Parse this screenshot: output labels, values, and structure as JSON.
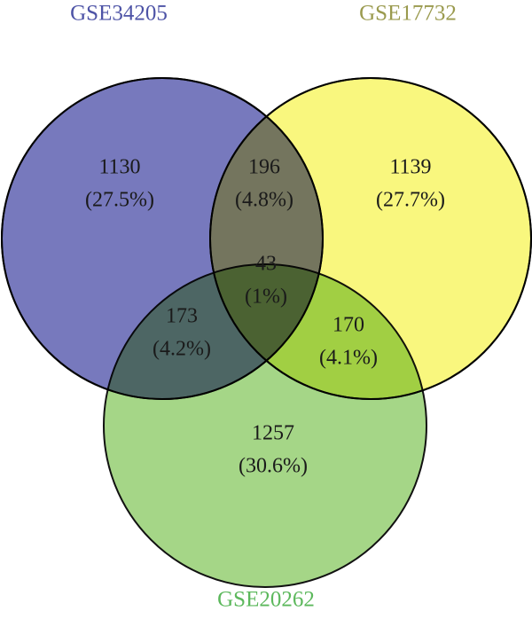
{
  "sets": [
    {
      "label": "GSE34205"
    },
    {
      "label": "GSE17732"
    },
    {
      "label": "GSE20262"
    }
  ],
  "regions": [
    {
      "count": 1130,
      "percent": "(27.5%)"
    },
    {
      "count": 196,
      "percent": "(4.8%)"
    },
    {
      "count": 1139,
      "percent": "(27.7%)"
    },
    {
      "count": 43,
      "percent": "(1%)"
    },
    {
      "count": 173,
      "percent": "(4.2%)"
    },
    {
      "count": 170,
      "percent": "(4.1%)"
    },
    {
      "count": 1257,
      "percent": "(30.6%)"
    }
  ]
}
